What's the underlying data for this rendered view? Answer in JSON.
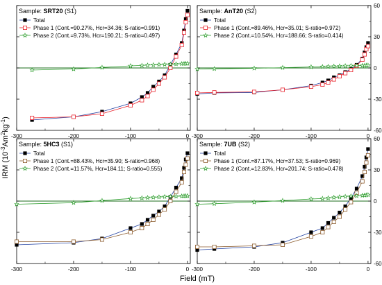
{
  "figure": {
    "ylabel_main": "IRM (10",
    "ylabel_sup1": "-3",
    "ylabel_mid": "Am",
    "ylabel_sup2": "2",
    "ylabel_mid2": "kg",
    "ylabel_sup3": "-1",
    "ylabel_end": ")",
    "xlabel": "Field (mT)",
    "colors": {
      "total": "#000000",
      "phase1": "#e8202a",
      "phase1_mixed": "#8b5a2b",
      "phase2": "#2e9e2e",
      "zero_line": "#1a6b1a"
    }
  },
  "chart_data": [
    {
      "type": "line",
      "sample_prefix": "Sample: ",
      "sample_name": "SRT20",
      "sample_suffix": " (S1)",
      "phase1_color_key": "phase1",
      "xlim": [
        -300,
        5
      ],
      "ylim": [
        -60,
        60
      ],
      "xticks": [
        "-300",
        "-200",
        "-100",
        "0"
      ],
      "yticks": [],
      "x": [
        -273,
        -200,
        -150,
        -100,
        -80,
        -70,
        -60,
        -50,
        -40,
        -30,
        -20,
        -10,
        -6,
        -3,
        0
      ],
      "series": [
        {
          "name": "Total",
          "values": [
            -50,
            -47,
            -42,
            -34,
            -28,
            -24,
            -18,
            -13,
            -7,
            3,
            13,
            24,
            36,
            47,
            55
          ]
        },
        {
          "name": "Phase 1 (Cont.=90.27%, Hcr=34.36; S-ratio=0.991)",
          "values": [
            -48,
            -47,
            -44,
            -36,
            -31,
            -27,
            -21,
            -15,
            -9,
            0,
            11,
            22,
            34,
            44,
            51
          ]
        },
        {
          "name": "Phase 2 (Cont.=9.73%, Hcr=190.21; S-ratio=0.497)",
          "values": [
            -2,
            -1,
            0.5,
            2,
            2.4,
            2.7,
            3,
            3.2,
            3.4,
            3.6,
            3.8,
            4,
            4.1,
            4.2,
            4.3
          ]
        }
      ]
    },
    {
      "type": "line",
      "sample_prefix": "Sample: ",
      "sample_name": "AnT20",
      "sample_suffix": " (S2)",
      "phase1_color_key": "phase1",
      "xlim": [
        -300,
        5
      ],
      "ylim": [
        -60,
        60
      ],
      "xticks": [
        "-300",
        "-200",
        "-100",
        "0"
      ],
      "yticks": [
        "60",
        "30",
        "0",
        "-30",
        "-60"
      ],
      "x": [
        -300,
        -270,
        -200,
        -150,
        -100,
        -80,
        -70,
        -60,
        -50,
        -40,
        -30,
        -20,
        -10,
        -6,
        -3,
        0
      ],
      "series": [
        {
          "name": "Total",
          "values": [
            -25,
            -24,
            -23.5,
            -21,
            -17,
            -14,
            -12,
            -9,
            -7,
            -4,
            -1,
            3,
            9,
            15,
            20,
            24
          ]
        },
        {
          "name": "Phase 1 (Cont.=89.46%, Hcr=35.01; S-ratio=0.972)",
          "values": [
            -24,
            -23.5,
            -23,
            -21,
            -18,
            -16,
            -14,
            -11,
            -8,
            -5,
            -2,
            2,
            8,
            13,
            18,
            21
          ]
        },
        {
          "name": "Phase 2 (Cont.=10.54%, Hcr=188.66; S-ratio=0.414)",
          "values": [
            -1,
            -0.8,
            -0.3,
            0.3,
            1,
            1.2,
            1.4,
            1.6,
            1.8,
            2,
            2.1,
            2.2,
            2.3,
            2.4,
            2.5,
            2.6
          ]
        }
      ]
    },
    {
      "type": "line",
      "sample_prefix": "Sample: ",
      "sample_name": "5HC3",
      "sample_suffix": " (S1)",
      "phase1_color_key": "phase1_mixed",
      "xlim": [
        -300,
        5
      ],
      "ylim": [
        -60,
        60
      ],
      "xticks": [
        "-300",
        "-200",
        "-100",
        "0"
      ],
      "yticks": [],
      "x": [
        -300,
        -200,
        -150,
        -100,
        -80,
        -70,
        -60,
        -50,
        -40,
        -30,
        -20,
        -10,
        -6,
        -3,
        0
      ],
      "series": [
        {
          "name": "Total",
          "values": [
            -42,
            -40,
            -36,
            -26,
            -22,
            -18,
            -14,
            -10,
            -5,
            4,
            13,
            22,
            32,
            40,
            46
          ]
        },
        {
          "name": "Phase 1 (Cont.=88.43%, Hcr=35.90; S-ratio=0.968)",
          "values": [
            -39,
            -39,
            -37,
            -30,
            -26,
            -22,
            -18,
            -13,
            -8,
            0,
            9,
            18,
            28,
            35,
            41
          ]
        },
        {
          "name": "Phase 2 (Cont.=11.57%, Hcr=184.11; S-ratio=0.555)",
          "values": [
            -3,
            -1.5,
            0.5,
            2.5,
            3,
            3.3,
            3.6,
            3.9,
            4.2,
            4.4,
            4.6,
            4.8,
            4.9,
            5,
            5.1
          ]
        }
      ]
    },
    {
      "type": "line",
      "sample_prefix": "Sample: ",
      "sample_name": "7UB",
      "sample_suffix": " (S2)",
      "phase1_color_key": "phase1_mixed",
      "xlim": [
        -300,
        5
      ],
      "ylim": [
        -60,
        60
      ],
      "xticks": [
        "-300",
        "-200",
        "-100",
        "0"
      ],
      "yticks": [
        "60",
        "30",
        "0",
        "-30",
        "-60"
      ],
      "x": [
        -300,
        -270,
        -200,
        -150,
        -100,
        -80,
        -70,
        -60,
        -50,
        -40,
        -30,
        -20,
        -10,
        -6,
        -3,
        0
      ],
      "series": [
        {
          "name": "Total",
          "values": [
            -47,
            -46,
            -44,
            -40,
            -30,
            -26,
            -21,
            -16,
            -11,
            -5,
            3,
            12,
            24,
            33,
            42,
            50
          ]
        },
        {
          "name": "Phase 1 (Cont.=87.17%, Hcr=37.53; S-ratio=0.969)",
          "values": [
            -44,
            -44,
            -43,
            -42,
            -34,
            -30,
            -25,
            -20,
            -15,
            -8,
            -1,
            8,
            19,
            28,
            37,
            44
          ]
        },
        {
          "name": "Phase 2 (Cont.=12.83%, Hcr=201.74; S-ratio=0.478)",
          "values": [
            -3,
            -2.5,
            -1,
            0.5,
            2,
            2.5,
            3,
            3.5,
            4,
            4.4,
            4.8,
            5.1,
            5.4,
            5.6,
            5.8,
            6
          ]
        }
      ]
    }
  ]
}
